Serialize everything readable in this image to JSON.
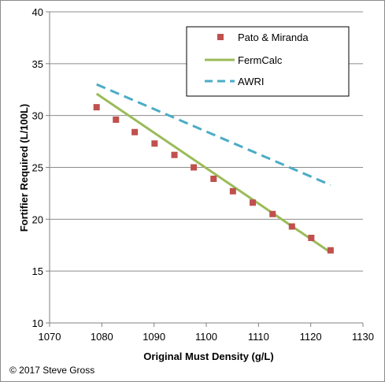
{
  "chart_data": {
    "type": "scatter",
    "title": "",
    "xlabel": "Original Must Density (g/L)",
    "ylabel": "Fortifier Required (L/100L)",
    "xlim": [
      1070,
      1130
    ],
    "ylim": [
      10,
      40
    ],
    "x_ticks": [
      "1070",
      "1080",
      "1090",
      "1100",
      "1110",
      "1120",
      "1130"
    ],
    "y_ticks": [
      "10",
      "15",
      "20",
      "25",
      "30",
      "35",
      "40"
    ],
    "grid": "horizontal",
    "legend": "top-right",
    "series": [
      {
        "name": "Pato & Miranda",
        "kind": "marker",
        "color": "#c0504d",
        "points": [
          [
            1079,
            30.8
          ],
          [
            1082.7,
            29.6
          ],
          [
            1086.3,
            28.4
          ],
          [
            1090.1,
            27.3
          ],
          [
            1093.9,
            26.2
          ],
          [
            1097.6,
            25.0
          ],
          [
            1101.4,
            23.9
          ],
          [
            1105.1,
            22.7
          ],
          [
            1108.9,
            21.6
          ],
          [
            1112.7,
            20.5
          ],
          [
            1116.4,
            19.3
          ],
          [
            1120.1,
            18.2
          ],
          [
            1123.8,
            17.0
          ]
        ]
      },
      {
        "name": "FermCalc",
        "kind": "line",
        "color": "#9bbb59",
        "points": [
          [
            1079,
            32.1
          ],
          [
            1123.8,
            16.8
          ]
        ]
      },
      {
        "name": "AWRI",
        "kind": "dashed",
        "color": "#4bacc6",
        "points": [
          [
            1079,
            33.0
          ],
          [
            1123.8,
            23.3
          ]
        ]
      }
    ]
  },
  "copyright": "© 2017 Steve Gross"
}
